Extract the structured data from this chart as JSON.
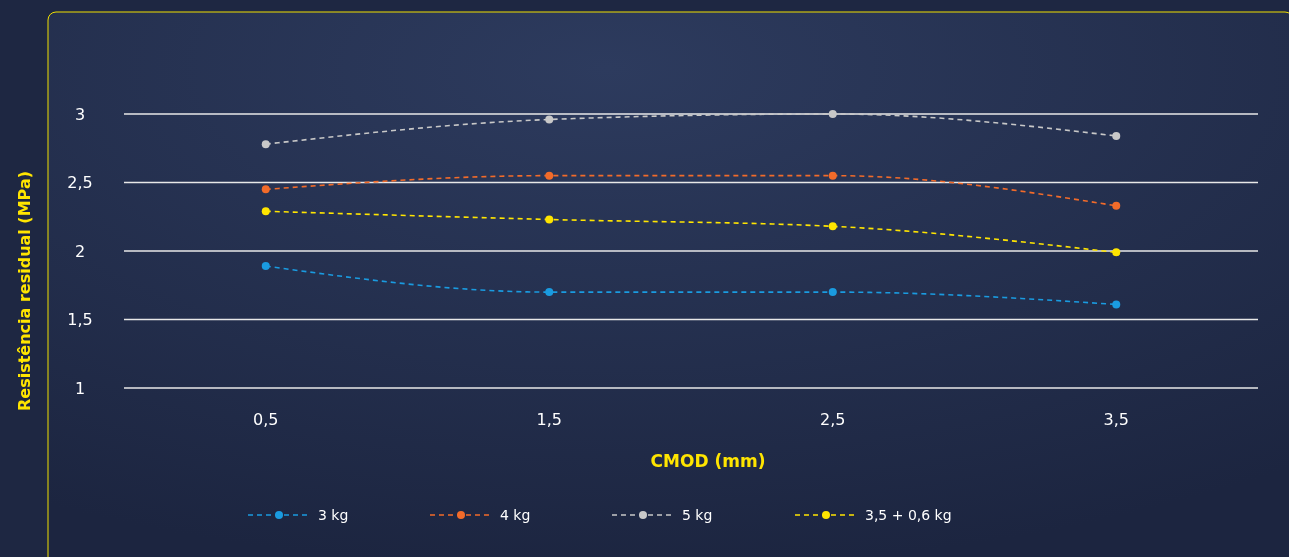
{
  "chart_data": {
    "type": "line",
    "xlabel": "CMOD (mm)",
    "ylabel": "Resistência residual (MPa)",
    "categories": [
      "0,5",
      "1,5",
      "2,5",
      "3,5"
    ],
    "ylim": [
      1,
      3
    ],
    "yticks": [
      1,
      {
        "value": 1.5,
        "label": "1,5"
      },
      2,
      {
        "value": 2.5,
        "label": "2,5"
      },
      3
    ],
    "grid": "y",
    "legend": "bottom",
    "marker": "circle",
    "line_style": "dashed",
    "series": [
      {
        "name": "3 kg",
        "color": "#1a9be0",
        "values": [
          1.89,
          1.7,
          1.7,
          1.61
        ]
      },
      {
        "name": "4 kg",
        "color": "#f26b2a",
        "values": [
          2.45,
          2.55,
          2.55,
          2.33
        ]
      },
      {
        "name": "5 kg",
        "color": "#c8c8c8",
        "values": [
          2.78,
          2.96,
          3,
          2.84
        ]
      },
      {
        "name": "3,5 + 0,6 kg",
        "color": "#ffe500",
        "values": [
          2.29,
          2.23,
          2.18,
          1.99
        ]
      }
    ]
  }
}
